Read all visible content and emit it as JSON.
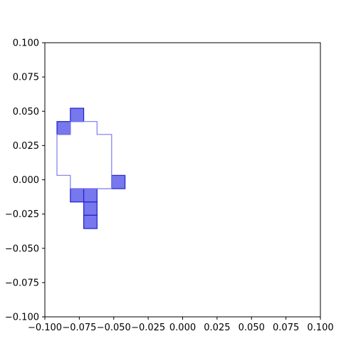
{
  "chart_data": {
    "type": "scatter",
    "title": "",
    "xlabel": "",
    "ylabel": "",
    "xlim": [
      -0.1,
      0.1
    ],
    "ylim": [
      -0.1,
      0.1
    ],
    "grid": false,
    "xticks": [
      -0.1,
      -0.075,
      -0.05,
      -0.025,
      0.0,
      0.025,
      0.05,
      0.075,
      0.1
    ],
    "xtick_labels": [
      "−0.100",
      "−0.075",
      "−0.050",
      "−0.025",
      "0.000",
      "0.025",
      "0.050",
      "0.075",
      "0.100"
    ],
    "yticks": [
      -0.1,
      -0.075,
      -0.05,
      -0.025,
      0.0,
      0.025,
      0.05,
      0.075,
      0.1
    ],
    "ytick_labels": [
      "−0.100",
      "−0.075",
      "−0.050",
      "−0.025",
      "0.000",
      "0.025",
      "0.050",
      "0.075",
      "0.100"
    ],
    "fill_color": "#7777ee",
    "edge_color": "#2222cc",
    "outline_color": "#7b7bee",
    "filled_cells": [
      {
        "x0": -0.0815,
        "x1": -0.0718,
        "y0": 0.0425,
        "y1": 0.0522
      },
      {
        "x0": -0.0912,
        "x1": -0.0815,
        "y0": 0.0331,
        "y1": 0.0425
      },
      {
        "x0": -0.0515,
        "x1": -0.0418,
        "y0": -0.0065,
        "y1": 0.0032
      },
      {
        "x0": -0.0815,
        "x1": -0.0718,
        "y0": -0.0162,
        "y1": -0.0065
      },
      {
        "x0": -0.0718,
        "x1": -0.0621,
        "y0": -0.0162,
        "y1": -0.0065
      },
      {
        "x0": -0.0718,
        "x1": -0.0621,
        "y0": -0.0259,
        "y1": -0.0162
      },
      {
        "x0": -0.0718,
        "x1": -0.0621,
        "y0": -0.0356,
        "y1": -0.0259
      }
    ],
    "outline": [
      [
        -0.0815,
        0.0425
      ],
      [
        -0.0621,
        0.0425
      ],
      [
        -0.0621,
        0.0331
      ],
      [
        -0.0515,
        0.0331
      ],
      [
        -0.0515,
        -0.0065
      ],
      [
        -0.0815,
        -0.0065
      ],
      [
        -0.0815,
        0.0032
      ],
      [
        -0.0912,
        0.0032
      ],
      [
        -0.0912,
        0.0331
      ],
      [
        -0.0815,
        0.0331
      ],
      [
        -0.0815,
        0.0425
      ]
    ]
  }
}
